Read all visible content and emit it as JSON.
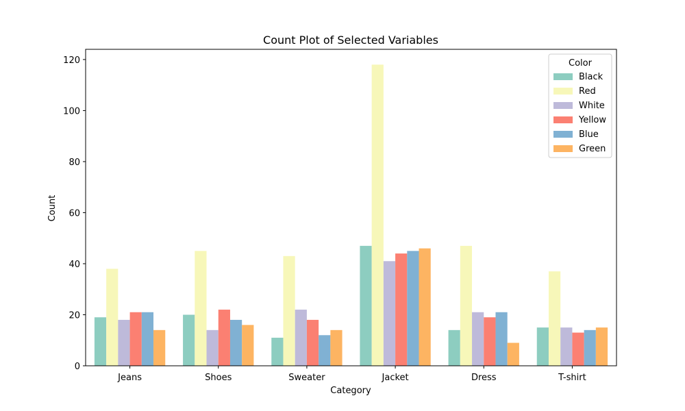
{
  "chart_data": {
    "type": "bar",
    "title": "Count Plot of Selected Variables",
    "xlabel": "Category",
    "ylabel": "Count",
    "categories": [
      "Jeans",
      "Shoes",
      "Sweater",
      "Jacket",
      "Dress",
      "T-shirt"
    ],
    "ylim": [
      0,
      124
    ],
    "yticks": [
      0,
      20,
      40,
      60,
      80,
      100,
      120
    ],
    "grid": false,
    "legend": {
      "title": "Color",
      "position": "top-right"
    },
    "series": [
      {
        "name": "Black",
        "color": "#8dcdc0",
        "values": [
          19,
          20,
          11,
          47,
          14,
          15
        ]
      },
      {
        "name": "Red",
        "color": "#f7f7b9",
        "values": [
          38,
          45,
          43,
          118,
          47,
          37
        ]
      },
      {
        "name": "White",
        "color": "#bebada",
        "values": [
          18,
          14,
          22,
          41,
          21,
          15
        ]
      },
      {
        "name": "Yellow",
        "color": "#fb8072",
        "values": [
          21,
          22,
          18,
          44,
          19,
          13
        ]
      },
      {
        "name": "Blue",
        "color": "#80b1d3",
        "values": [
          21,
          18,
          12,
          45,
          21,
          14
        ]
      },
      {
        "name": "Green",
        "color": "#fdb462",
        "values": [
          14,
          16,
          14,
          46,
          9,
          15
        ]
      }
    ]
  }
}
